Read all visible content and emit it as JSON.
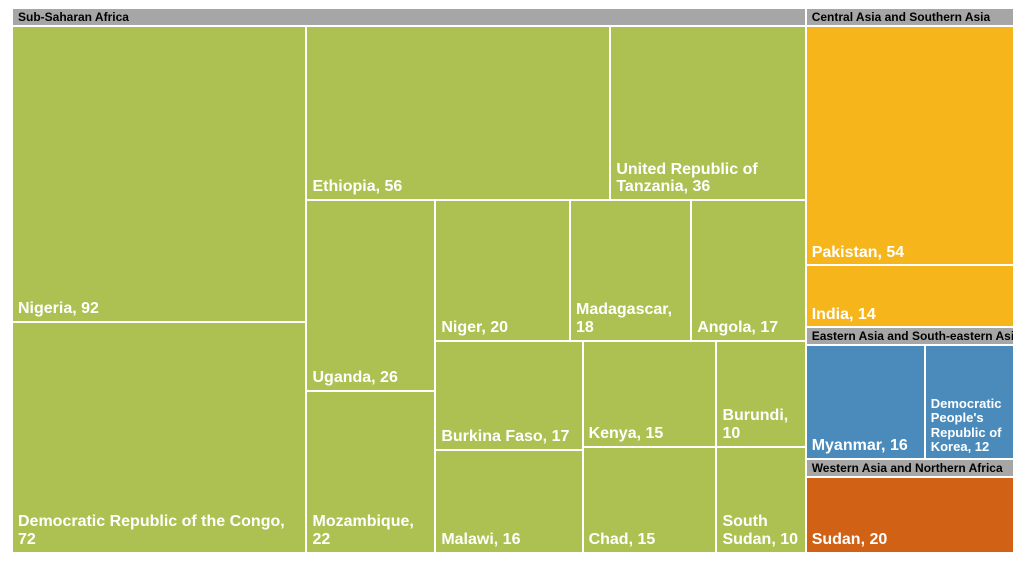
{
  "chart_data": {
    "type": "treemap",
    "groups": [
      {
        "name": "Sub-Saharan Africa",
        "color": "#adc152",
        "children": [
          {
            "label": "Nigeria, 92",
            "value": 92
          },
          {
            "label": "Democratic Republic of the Congo, 72",
            "value": 72
          },
          {
            "label": "Ethiopia, 56",
            "value": 56
          },
          {
            "label": "United Republic of Tanzania, 36",
            "value": 36
          },
          {
            "label": "Uganda, 26",
            "value": 26
          },
          {
            "label": "Mozambique, 22",
            "value": 22
          },
          {
            "label": "Niger, 20",
            "value": 20
          },
          {
            "label": "Madagascar, 18",
            "value": 18
          },
          {
            "label": "Angola, 17",
            "value": 17
          },
          {
            "label": "Burkina Faso, 17",
            "value": 17
          },
          {
            "label": "Malawi, 16",
            "value": 16
          },
          {
            "label": "Kenya, 15",
            "value": 15
          },
          {
            "label": "Chad, 15",
            "value": 15
          },
          {
            "label": "Burundi, 10",
            "value": 10
          },
          {
            "label": "South Sudan, 10",
            "value": 10
          }
        ]
      },
      {
        "name": "Central Asia and Southern Asia",
        "color": "#f7b51c",
        "children": [
          {
            "label": "Pakistan, 54",
            "value": 54
          },
          {
            "label": "India, 14",
            "value": 14
          }
        ]
      },
      {
        "name": "Eastern Asia and South-eastern Asia",
        "color": "#4a8bbb",
        "children": [
          {
            "label": "Myanmar, 16",
            "value": 16
          },
          {
            "label": "Democratic People's Republic of Korea, 12",
            "value": 12
          }
        ]
      },
      {
        "name": "Western Asia and Northern Africa",
        "color": "#d16114",
        "children": [
          {
            "label": "Sudan, 20",
            "value": 20
          }
        ]
      }
    ]
  }
}
